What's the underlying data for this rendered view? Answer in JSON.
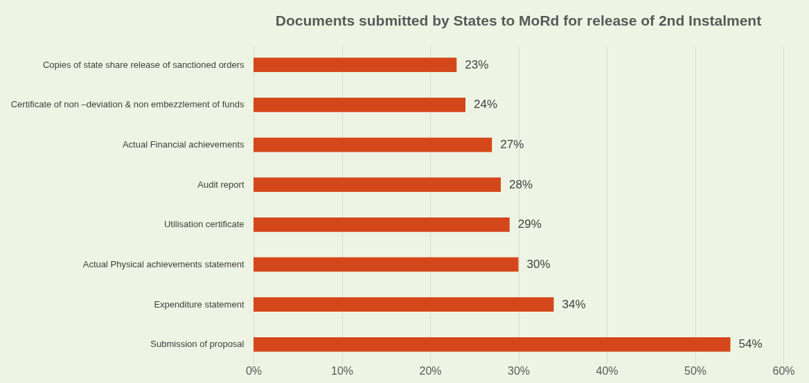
{
  "chart_data": {
    "type": "bar",
    "orientation": "horizontal",
    "title": "Documents submitted by States to MoRd for release of 2nd Instalment",
    "categories": [
      "Copies of state share release of sanctioned orders",
      "Certificate of non –deviation & non embezzlement of funds",
      "Actual Financial achievements",
      "Audit report",
      "Utilisation certificate",
      "Actual Physical achievements statement",
      "Expenditure statement",
      "Submission of proposal"
    ],
    "values": [
      23,
      24,
      27,
      28,
      29,
      30,
      34,
      54
    ],
    "value_labels": [
      "23%",
      "24%",
      "27%",
      "28%",
      "29%",
      "30%",
      "34%",
      "54%"
    ],
    "color": "#d4471a",
    "xlim": [
      0,
      60
    ],
    "xticks": [
      {
        "value": 0,
        "label": "0%"
      },
      {
        "value": 10,
        "label": "10%"
      },
      {
        "value": 20,
        "label": "20%"
      },
      {
        "value": 30,
        "label": "30%"
      },
      {
        "value": 40,
        "label": "40%"
      },
      {
        "value": 50,
        "label": "50%"
      },
      {
        "value": 60,
        "label": "60%"
      }
    ],
    "grid": "x"
  }
}
